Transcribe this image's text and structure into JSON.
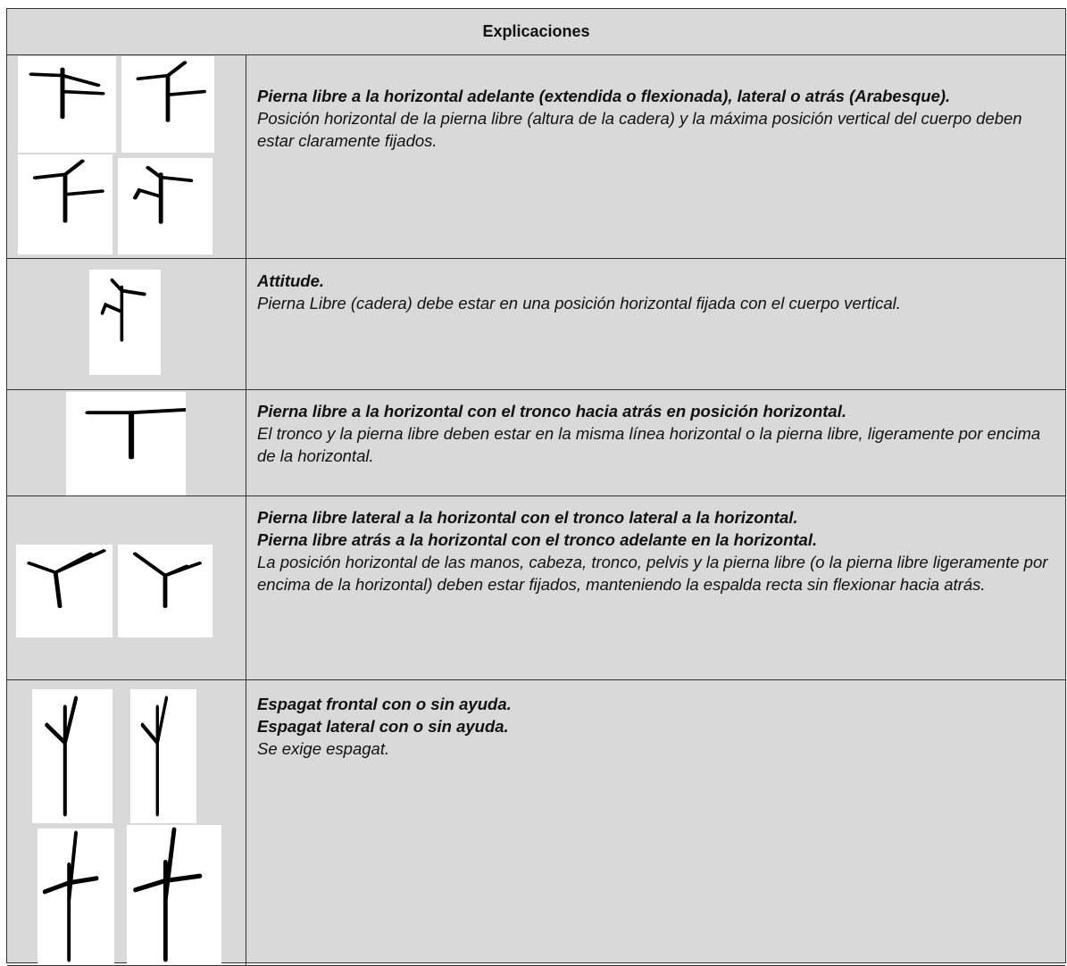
{
  "header": {
    "title": "Explicaciones"
  },
  "rows": [
    {
      "headings": [
        "Pierna libre a la horizontal adelante (extendida o flexionada), lateral o atrás (Arabesque)."
      ],
      "description": "Posición horizontal de la pierna libre (altura de la cadera) y la máxima posición vertical del cuerpo deben estar claramente fijados."
    },
    {
      "headings": [
        "Attitude."
      ],
      "description": "Pierna Libre (cadera) debe estar en una posición horizontal fijada con el cuerpo vertical."
    },
    {
      "headings": [
        "Pierna libre a la horizontal con el tronco hacia atrás en posición horizontal."
      ],
      "description": "El tronco y la pierna libre deben estar en la misma línea horizontal o la pierna libre, ligeramente por encima de la horizontal."
    },
    {
      "headings": [
        "Pierna libre lateral a la horizontal con el tronco lateral a la horizontal.",
        "Pierna libre atrás a la horizontal con el tronco adelante en la horizontal."
      ],
      "description": "La posición horizontal de las manos, cabeza, tronco, pelvis y la pierna libre (o la pierna libre ligeramente por encima de la horizontal) deben estar fijados, manteniendo la espalda recta sin flexionar hacia atrás."
    },
    {
      "headings": [
        "Espagat frontal con o sin ayuda.",
        "Espagat lateral con o sin ayuda."
      ],
      "description": "Se exige espagat."
    }
  ]
}
